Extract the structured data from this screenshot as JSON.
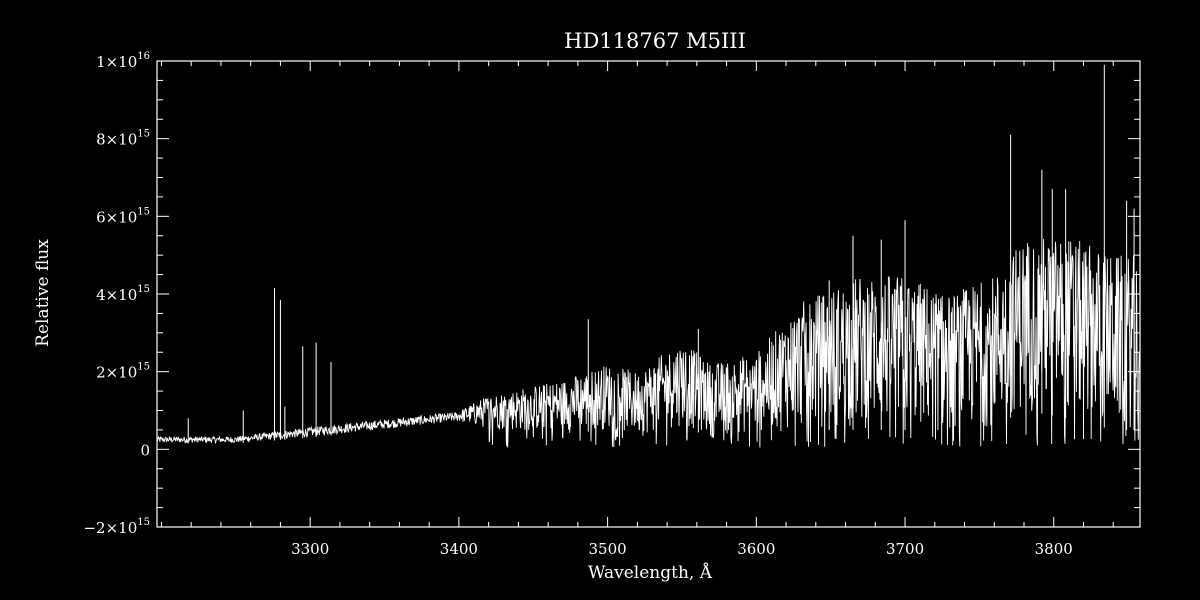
{
  "chart_data": {
    "type": "line",
    "title": "HD118767   M5III",
    "xlabel": "Wavelength, Å",
    "ylabel": "Relative flux",
    "xlim": [
      3197,
      3858
    ],
    "ylim": [
      -2000000000000000.0,
      1e+16
    ],
    "grid": false,
    "legend": "none",
    "line_color": "#ffffff",
    "background": "#000000",
    "x_ticks": [
      {
        "value": 3300,
        "label": "3300"
      },
      {
        "value": 3400,
        "label": "3400"
      },
      {
        "value": 3500,
        "label": "3500"
      },
      {
        "value": 3600,
        "label": "3600"
      },
      {
        "value": 3700,
        "label": "3700"
      },
      {
        "value": 3800,
        "label": "3800"
      }
    ],
    "y_ticks": [
      {
        "value": -2000000000000000.0,
        "mant": "−2×10",
        "exp": "15"
      },
      {
        "value": 0,
        "mant": "0",
        "exp": ""
      },
      {
        "value": 2000000000000000.0,
        "mant": "2×10",
        "exp": "15"
      },
      {
        "value": 4000000000000000.0,
        "mant": "4×10",
        "exp": "15"
      },
      {
        "value": 6000000000000000.0,
        "mant": "6×10",
        "exp": "15"
      },
      {
        "value": 8000000000000000.0,
        "mant": "8×10",
        "exp": "15"
      },
      {
        "value": 1e+16,
        "mant": "1×10",
        "exp": "16"
      }
    ],
    "envelope": [
      [
        3197,
        150000000000000.0,
        350000000000000.0
      ],
      [
        3250,
        150000000000000.0,
        350000000000000.0
      ],
      [
        3300,
        300000000000000.0,
        600000000000000.0
      ],
      [
        3350,
        500000000000000.0,
        800000000000000.0
      ],
      [
        3400,
        700000000000000.0,
        1000000000000000.0
      ],
      [
        3420,
        500000000000000.0,
        1400000000000000.0
      ],
      [
        3470,
        400000000000000.0,
        1800000000000000.0
      ],
      [
        3500,
        500000000000000.0,
        2200000000000000.0
      ],
      [
        3520,
        300000000000000.0,
        2000000000000000.0
      ],
      [
        3550,
        600000000000000.0,
        2800000000000000.0
      ],
      [
        3570,
        300000000000000.0,
        2200000000000000.0
      ],
      [
        3600,
        400000000000000.0,
        2500000000000000.0
      ],
      [
        3630,
        500000000000000.0,
        3800000000000000.0
      ],
      [
        3670,
        500000000000000.0,
        4500000000000000.0
      ],
      [
        3700,
        500000000000000.0,
        4500000000000000.0
      ],
      [
        3730,
        300000000000000.0,
        4000000000000000.0
      ],
      [
        3760,
        600000000000000.0,
        4500000000000000.0
      ],
      [
        3780,
        1000000000000000.0,
        5500000000000000.0
      ],
      [
        3810,
        800000000000000.0,
        5500000000000000.0
      ],
      [
        3840,
        500000000000000.0,
        5000000000000000.0
      ],
      [
        3858,
        500000000000000.0,
        5000000000000000.0
      ]
    ],
    "spikes": [
      [
        3218,
        800000000000000.0
      ],
      [
        3255,
        1000000000000000.0
      ],
      [
        3276,
        4150000000000000.0
      ],
      [
        3280,
        3850000000000000.0
      ],
      [
        3283,
        1100000000000000.0
      ],
      [
        3295,
        2650000000000000.0
      ],
      [
        3304,
        2750000000000000.0
      ],
      [
        3314,
        2250000000000000.0
      ],
      [
        3487,
        3350000000000000.0
      ],
      [
        3561,
        3100000000000000.0
      ],
      [
        3649,
        4350000000000000.0
      ],
      [
        3665,
        5500000000000000.0
      ],
      [
        3684,
        5400000000000000.0
      ],
      [
        3700,
        5900000000000000.0
      ],
      [
        3771,
        8100000000000000.0
      ],
      [
        3792,
        7200000000000000.0
      ],
      [
        3799,
        6700000000000000.0
      ],
      [
        3808,
        6700000000000000.0
      ],
      [
        3834,
        9900000000000000.0
      ],
      [
        3849,
        6400000000000000.0
      ],
      [
        3854,
        6200000000000000.0
      ]
    ]
  }
}
